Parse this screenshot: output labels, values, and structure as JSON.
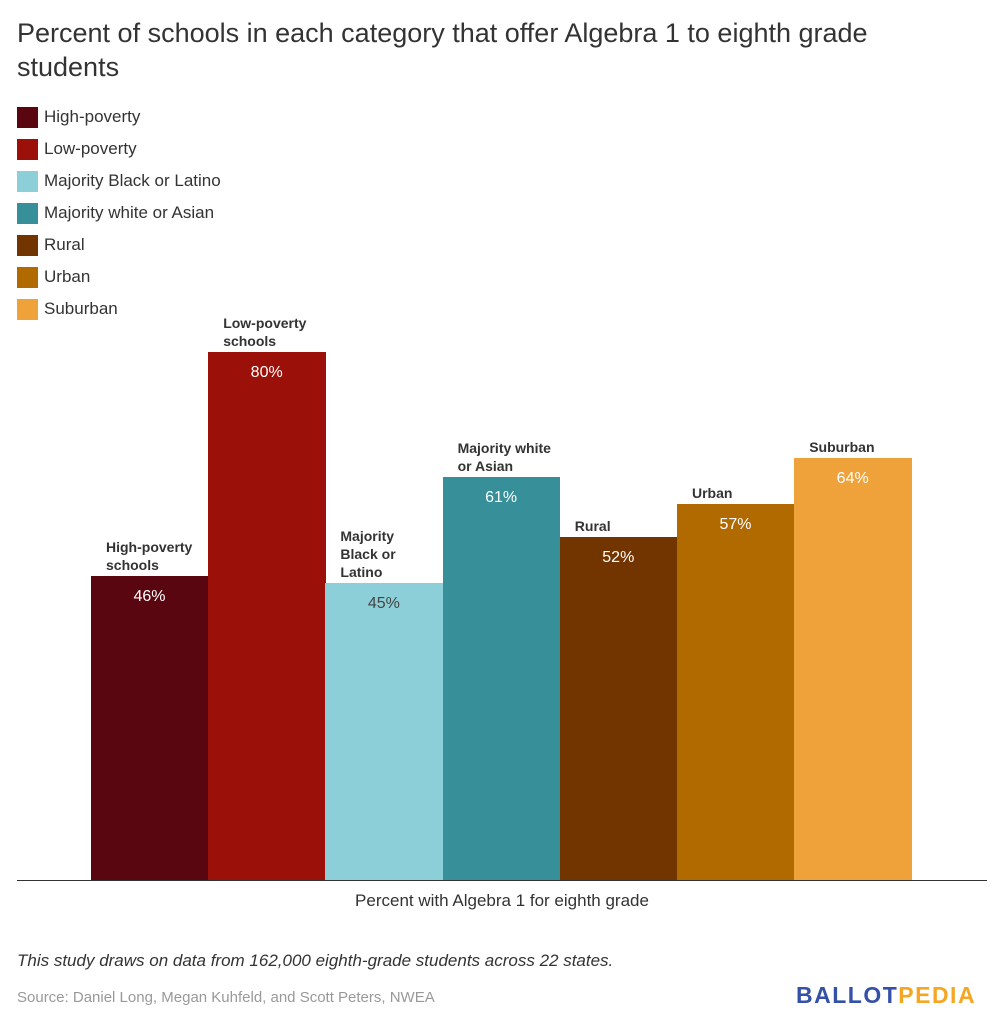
{
  "chart_data": {
    "type": "bar",
    "title": "Percent of schools in each category that offer Algebra 1 to eighth grade students",
    "xlabel": "Percent with Algebra 1 for eighth grade",
    "ylabel": "",
    "ylim": [
      0,
      80
    ],
    "grid": false,
    "legend_position": "top-left",
    "series": [
      {
        "name": "High-poverty",
        "label": "High-poverty\nschools",
        "value": 46,
        "display": "46%",
        "color": "#5a0610",
        "text_color": "#ffffff"
      },
      {
        "name": "Low-poverty",
        "label": "Low-poverty\nschools",
        "value": 80,
        "display": "80%",
        "color": "#9b1109",
        "text_color": "#ffffff"
      },
      {
        "name": "Majority Black or Latino",
        "label": "Majority\nBlack or\nLatino",
        "value": 45,
        "display": "45%",
        "color": "#8ccfd8",
        "text_color": "#444444"
      },
      {
        "name": "Majority white or Asian",
        "label": "Majority white\nor Asian",
        "value": 61,
        "display": "61%",
        "color": "#368f99",
        "text_color": "#ffffff"
      },
      {
        "name": "Rural",
        "label": "Rural",
        "value": 52,
        "display": "52%",
        "color": "#733500",
        "text_color": "#ffffff"
      },
      {
        "name": "Urban",
        "label": "Urban",
        "value": 57,
        "display": "57%",
        "color": "#b06a00",
        "text_color": "#ffffff"
      },
      {
        "name": "Suburban",
        "label": "Suburban",
        "value": 64,
        "display": "64%",
        "color": "#f0a23a",
        "text_color": "#ffffff"
      }
    ]
  },
  "footer": {
    "note": "This study draws on data from 162,000 eighth-grade students across 22 states.",
    "source": "Source: Daniel Long, Megan Kuhfeld, and Scott Peters, NWEA",
    "logo_part1": "BALLOT",
    "logo_part2": "PEDIA",
    "logo_color1": "#3550a8",
    "logo_color2": "#f5a623"
  }
}
